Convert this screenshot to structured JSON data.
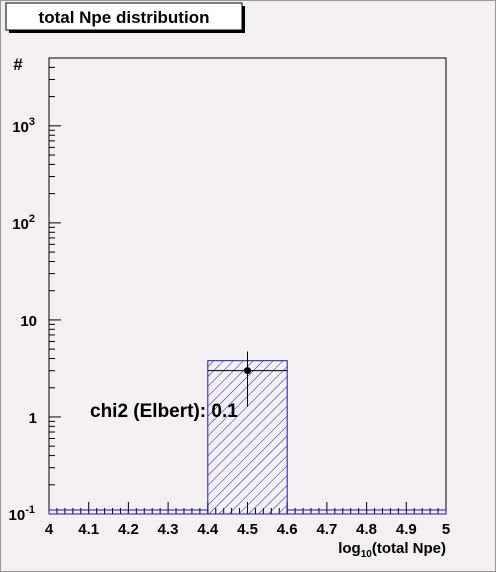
{
  "chart_data": {
    "type": "histogram",
    "title": "total Npe distribution",
    "y_label": "#",
    "x_label": {
      "text": "log",
      "sub": "10",
      "rest": "(total Npe)"
    },
    "annotation": "chi2 (Elbert): 0.1",
    "bins": [
      4.0,
      4.2,
      4.4,
      4.6,
      4.8,
      5.0
    ],
    "counts": [
      0,
      0,
      3.8,
      0,
      0
    ],
    "color": "#1c1c9c",
    "points": {
      "x": [
        4.5
      ],
      "y": [
        3
      ],
      "err": [
        1.73
      ],
      "xerr": [
        0.1
      ]
    },
    "log_y": true,
    "xlim": [
      4,
      5
    ],
    "ylim": [
      0.1,
      5000
    ],
    "xticks": [
      4,
      4.1,
      4.2,
      4.3,
      4.4,
      4.5,
      4.6,
      4.7,
      4.8,
      4.9,
      5
    ],
    "yticks": [
      {
        "value": 0.1,
        "label": "10",
        "exponent": "-1"
      },
      1,
      10,
      {
        "value": 100,
        "label": "10",
        "exponent": "2"
      },
      {
        "value": 1000,
        "label": "10",
        "exponent": "3"
      }
    ]
  }
}
